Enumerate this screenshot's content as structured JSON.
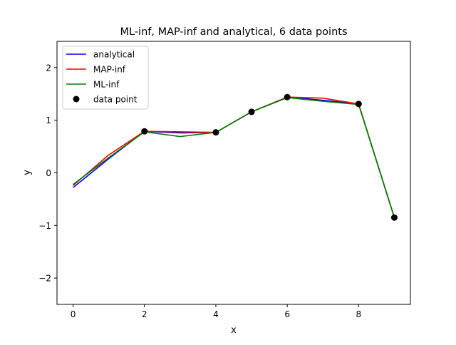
{
  "chart_data": {
    "type": "line",
    "title": "ML-inf, MAP-inf and analytical, 6 data points",
    "xlabel": "x",
    "ylabel": "y",
    "xlim": [
      -0.45,
      9.45
    ],
    "ylim": [
      -2.5,
      2.5
    ],
    "x_ticks": [
      0,
      2,
      4,
      6,
      8
    ],
    "y_ticks": [
      -2,
      -1,
      0,
      1,
      2
    ],
    "x_tick_labels": [
      "0",
      "2",
      "4",
      "6",
      "8"
    ],
    "y_tick_labels": [
      "−2",
      "−1",
      "0",
      "1",
      "2"
    ],
    "grid": false,
    "legend_position": "upper-left",
    "series": [
      {
        "name": "analytical",
        "kind": "line",
        "color": "#0000ff",
        "x": [
          0,
          1,
          2,
          3,
          4,
          5,
          6,
          7,
          8,
          9
        ],
        "y": [
          -0.28,
          0.27,
          0.79,
          0.76,
          0.77,
          1.16,
          1.44,
          1.38,
          1.31,
          -0.85
        ]
      },
      {
        "name": "MAP-inf",
        "kind": "line",
        "color": "#ff0000",
        "x": [
          0,
          1,
          2,
          3,
          4,
          5,
          6,
          7,
          8,
          9
        ],
        "y": [
          -0.24,
          0.34,
          0.79,
          0.78,
          0.77,
          1.16,
          1.44,
          1.42,
          1.31,
          -0.85
        ]
      },
      {
        "name": "ML-inf",
        "kind": "line",
        "color": "#008000",
        "x": [
          0,
          1,
          2,
          3,
          4,
          5,
          6,
          7,
          8,
          9
        ],
        "y": [
          -0.22,
          0.29,
          0.78,
          0.69,
          0.77,
          1.16,
          1.43,
          1.36,
          1.3,
          -0.85
        ]
      },
      {
        "name": "data point",
        "kind": "scatter",
        "color": "#000000",
        "x": [
          2,
          4,
          5,
          6,
          8,
          9
        ],
        "y": [
          0.79,
          0.77,
          1.16,
          1.44,
          1.31,
          -0.85
        ]
      }
    ]
  }
}
